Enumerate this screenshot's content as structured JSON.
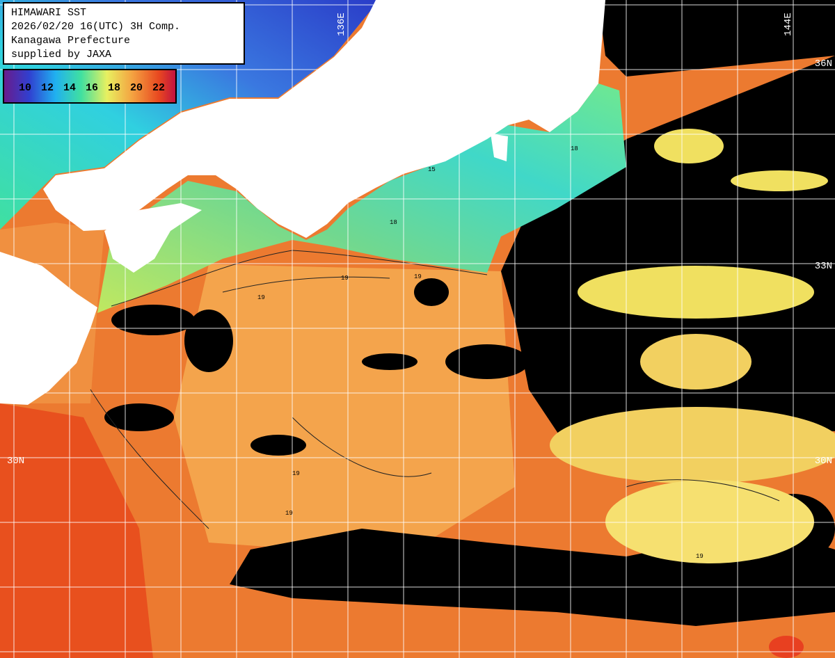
{
  "header": {
    "lines": [
      "HIMAWARI SST",
      "2026/02/20 16(UTC) 3H Comp.",
      "Kanagawa Prefecture",
      "supplied by JAXA"
    ]
  },
  "colorbar": {
    "labels": [
      10,
      12,
      14,
      16,
      18,
      20,
      22
    ]
  },
  "grid_labels": {
    "lon": [
      "136E",
      "144E"
    ],
    "lat": [
      "36N",
      "33N",
      "30N"
    ]
  },
  "contour_labels": [
    "19",
    "19",
    "18",
    "15",
    "18",
    "19",
    "19",
    "19",
    "19"
  ]
}
